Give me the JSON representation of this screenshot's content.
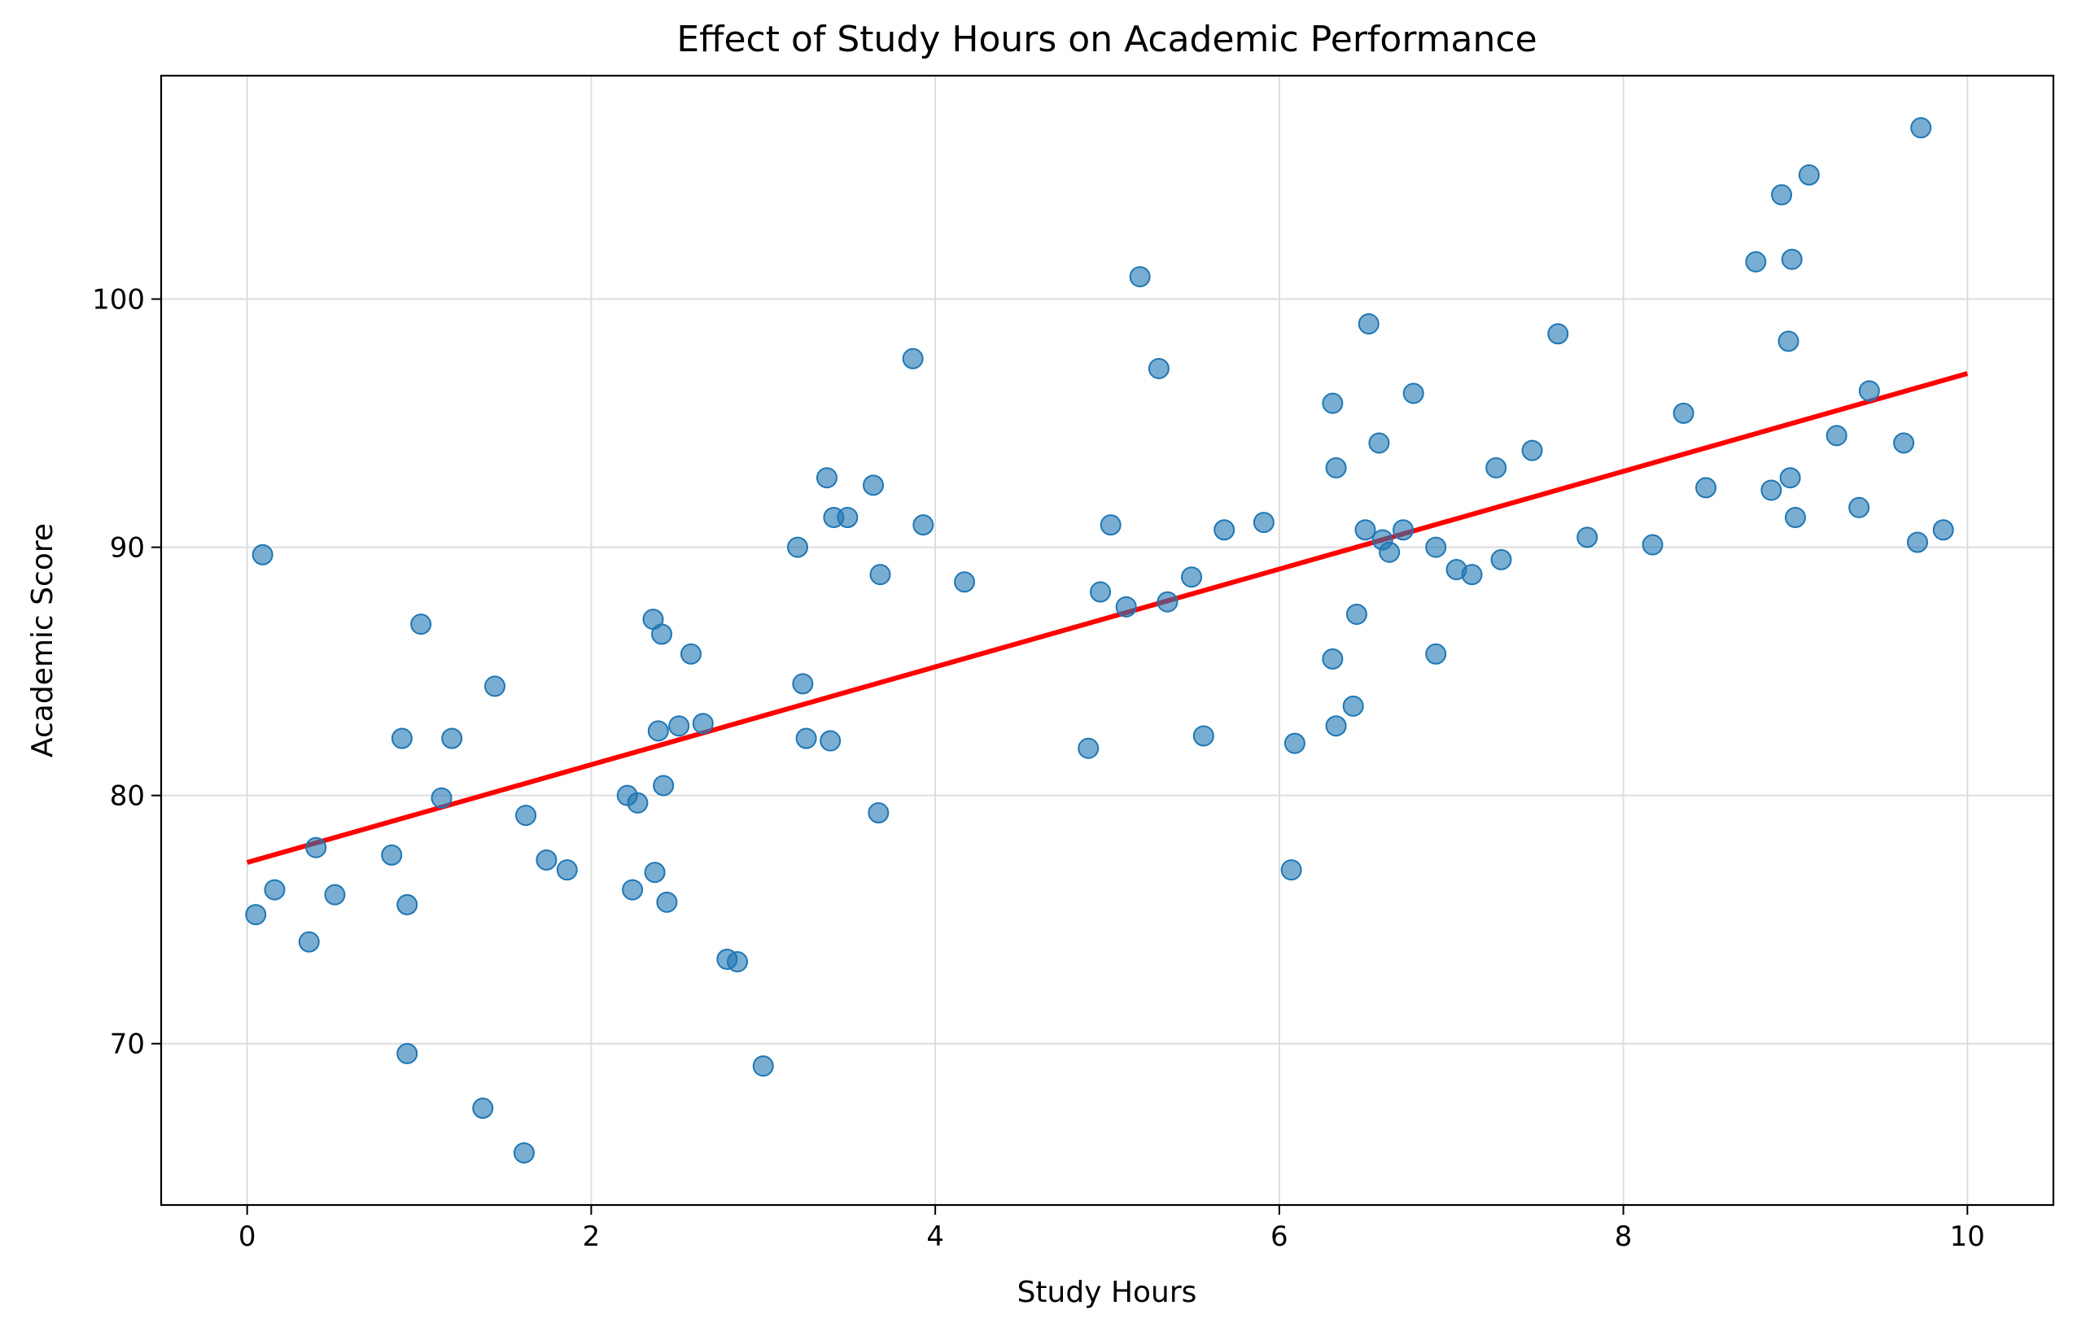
{
  "chart_data": {
    "type": "scatter",
    "title": "Effect of Study Hours on Academic Performance",
    "xlabel": "Study Hours",
    "ylabel": "Academic Score",
    "xlim": [
      -0.5,
      10.5
    ],
    "ylim": [
      63.5,
      109.0
    ],
    "x_ticks": [
      0,
      2,
      4,
      6,
      8,
      10
    ],
    "x_tick_labels": [
      "0",
      "2",
      "4",
      "6",
      "8",
      "10"
    ],
    "y_ticks": [
      70,
      80,
      90,
      100
    ],
    "y_tick_labels": [
      "70",
      "80",
      "90",
      "100"
    ],
    "grid": true,
    "legend": "none",
    "colors": {
      "points": "#1f77b4",
      "trend": "#ff0000",
      "grid": "#dddddd"
    },
    "trend_line": {
      "x": [
        0,
        10
      ],
      "y": [
        77.3,
        97.0
      ]
    },
    "points": [
      [
        0.05,
        75.2
      ],
      [
        0.09,
        89.7
      ],
      [
        0.16,
        76.2
      ],
      [
        0.36,
        74.1
      ],
      [
        0.4,
        77.9
      ],
      [
        0.51,
        76.0
      ],
      [
        0.84,
        77.6
      ],
      [
        0.9,
        82.3
      ],
      [
        0.93,
        75.6
      ],
      [
        0.93,
        69.6
      ],
      [
        1.01,
        86.9
      ],
      [
        1.13,
        79.9
      ],
      [
        1.19,
        82.3
      ],
      [
        1.37,
        67.4
      ],
      [
        1.44,
        84.4
      ],
      [
        1.61,
        65.6
      ],
      [
        1.62,
        79.2
      ],
      [
        1.74,
        77.4
      ],
      [
        1.86,
        77.0
      ],
      [
        2.21,
        80.0
      ],
      [
        2.24,
        76.2
      ],
      [
        2.27,
        79.7
      ],
      [
        2.36,
        87.1
      ],
      [
        2.37,
        76.9
      ],
      [
        2.39,
        82.6
      ],
      [
        2.41,
        86.5
      ],
      [
        2.42,
        80.4
      ],
      [
        2.44,
        75.7
      ],
      [
        2.51,
        82.8
      ],
      [
        2.58,
        85.7
      ],
      [
        2.65,
        82.9
      ],
      [
        2.79,
        73.4
      ],
      [
        2.85,
        73.3
      ],
      [
        3.0,
        69.1
      ],
      [
        3.2,
        90.0
      ],
      [
        3.23,
        84.5
      ],
      [
        3.25,
        82.3
      ],
      [
        3.37,
        92.8
      ],
      [
        3.39,
        82.2
      ],
      [
        3.41,
        91.2
      ],
      [
        3.49,
        91.2
      ],
      [
        3.64,
        92.5
      ],
      [
        3.67,
        79.3
      ],
      [
        3.68,
        88.9
      ],
      [
        3.87,
        97.6
      ],
      [
        3.93,
        90.9
      ],
      [
        4.17,
        88.6
      ],
      [
        4.89,
        81.9
      ],
      [
        4.96,
        88.2
      ],
      [
        5.02,
        90.9
      ],
      [
        5.11,
        87.6
      ],
      [
        5.19,
        100.9
      ],
      [
        5.3,
        97.2
      ],
      [
        5.35,
        87.8
      ],
      [
        5.49,
        88.8
      ],
      [
        5.56,
        82.4
      ],
      [
        5.68,
        90.7
      ],
      [
        5.91,
        91.0
      ],
      [
        6.07,
        77.0
      ],
      [
        6.09,
        82.1
      ],
      [
        6.31,
        95.8
      ],
      [
        6.31,
        85.5
      ],
      [
        6.33,
        93.2
      ],
      [
        6.33,
        82.8
      ],
      [
        6.43,
        83.6
      ],
      [
        6.45,
        87.3
      ],
      [
        6.5,
        90.7
      ],
      [
        6.52,
        99.0
      ],
      [
        6.58,
        94.2
      ],
      [
        6.6,
        90.3
      ],
      [
        6.64,
        89.8
      ],
      [
        6.72,
        90.7
      ],
      [
        6.78,
        96.2
      ],
      [
        6.91,
        85.7
      ],
      [
        6.91,
        90.0
      ],
      [
        7.03,
        89.1
      ],
      [
        7.12,
        88.9
      ],
      [
        7.26,
        93.2
      ],
      [
        7.29,
        89.5
      ],
      [
        7.47,
        93.9
      ],
      [
        7.62,
        98.6
      ],
      [
        7.79,
        90.4
      ],
      [
        8.17,
        90.1
      ],
      [
        8.35,
        95.4
      ],
      [
        8.48,
        92.4
      ],
      [
        8.77,
        101.5
      ],
      [
        8.86,
        92.3
      ],
      [
        8.92,
        104.2
      ],
      [
        8.96,
        98.3
      ],
      [
        8.97,
        92.8
      ],
      [
        8.98,
        101.6
      ],
      [
        9.0,
        91.2
      ],
      [
        9.08,
        105.0
      ],
      [
        9.24,
        94.5
      ],
      [
        9.37,
        91.6
      ],
      [
        9.43,
        96.3
      ],
      [
        9.63,
        94.2
      ],
      [
        9.71,
        90.2
      ],
      [
        9.73,
        106.9
      ],
      [
        9.86,
        90.7
      ]
    ]
  }
}
